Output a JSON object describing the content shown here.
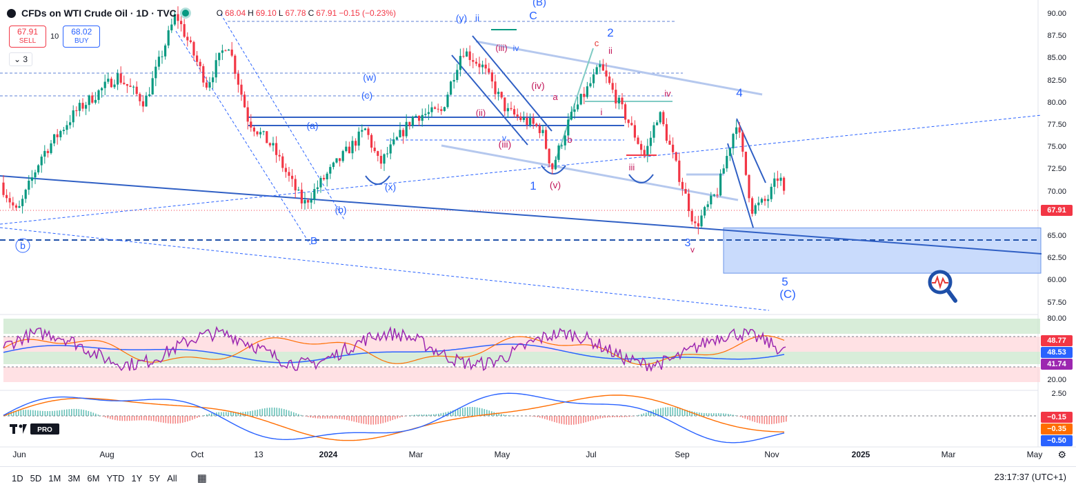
{
  "header": {
    "title": "CFDs on WTI Crude Oil · 1D · TVC",
    "open_label": "O",
    "open": "68.04",
    "high_label": "H",
    "high": "69.10",
    "low_label": "L",
    "low": "67.78",
    "close_label": "C",
    "close": "67.91",
    "change": "−0.15 (−0.23%)"
  },
  "trade": {
    "sell_price": "67.91",
    "sell_label": "SELL",
    "spread": "10",
    "buy_price": "68.02",
    "buy_label": "BUY",
    "collapse_label": "3"
  },
  "colors": {
    "up": "#089981",
    "down": "#f23645",
    "rsi": "#9c27b0",
    "macd": "#2962ff",
    "signal": "#ff6d00",
    "wave_blue": "#2962ff",
    "wave_red": "#e53935"
  },
  "price_axis": [
    "90.00",
    "87.50",
    "85.00",
    "82.50",
    "80.00",
    "77.50",
    "75.00",
    "72.50",
    "70.00",
    "67.50",
    "65.00",
    "62.50",
    "60.00",
    "57.50"
  ],
  "rsi_axis": [
    "80.00",
    "20.00"
  ],
  "macd_axis": [
    "2.50"
  ],
  "tags": {
    "last_price": "67.91",
    "rsi_a": "48.77",
    "rsi_b": "48.53",
    "rsi_c": "41.74",
    "macd_a": "−0.15",
    "macd_b": "−0.35",
    "macd_c": "−0.50"
  },
  "time_axis": [
    "Jun",
    "Aug",
    "Oct",
    "13",
    "2024",
    "Mar",
    "May",
    "Jul",
    "Sep",
    "Nov",
    "2025",
    "Mar",
    "May"
  ],
  "timeframes": [
    "1D",
    "5D",
    "1M",
    "3M",
    "6M",
    "YTD",
    "1Y",
    "5Y",
    "All"
  ],
  "clock": "23:17:37 (UTC+1)",
  "logo_text": "PRO",
  "wave_labels": [
    "b",
    "B",
    "(a)",
    "(b)",
    "(w)",
    "(c)",
    "(x)",
    "(y)",
    "ii",
    "C",
    "(B)",
    "(iii)",
    "(ii)",
    "(iii)",
    "iv",
    "v",
    "(iv)",
    "(v)",
    "1",
    "a",
    "b",
    "c",
    "2",
    "ii",
    "i",
    "iii",
    "iv",
    "3",
    "v",
    "4",
    "5",
    "(C)"
  ],
  "chart_data": {
    "type": "candlestick",
    "symbol": "CFDs on WTI Crude Oil",
    "interval": "1D",
    "x": [
      "Jun 2023",
      "Jul 2023",
      "Aug 2023",
      "Sep 2023",
      "Oct 2023",
      "Nov 2023",
      "Dec 2023",
      "Jan 2024",
      "Feb 2024",
      "Mar 2024",
      "Apr 2024",
      "May 2024",
      "Jun 2024",
      "Jul 2024",
      "Aug 2024",
      "Sep 2024",
      "Oct 2024",
      "Nov 2024"
    ],
    "close": [
      70.6,
      74.5,
      81.0,
      90.0,
      81.0,
      75.6,
      71.6,
      75.8,
      78.3,
      83.2,
      81.9,
      77.0,
      81.5,
      78.6,
      73.6,
      68.2,
      69.3,
      67.91
    ],
    "ylim": [
      56,
      91
    ],
    "rsi_ylim": [
      20,
      80
    ],
    "macd_ylim": [
      -0.5,
      2.5
    ]
  }
}
